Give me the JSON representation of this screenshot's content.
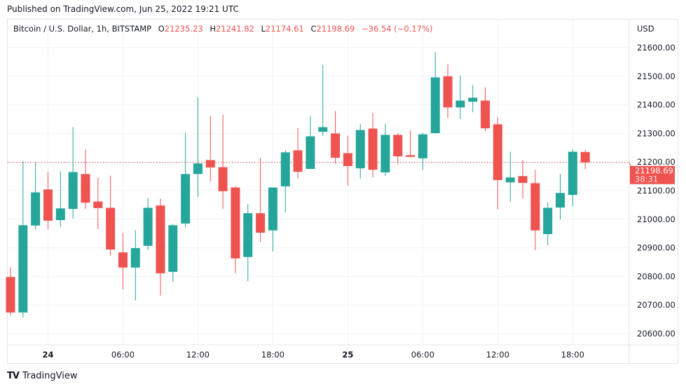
{
  "published": "Published on TradingView.com, Jun 25, 2022 19:21 UTC",
  "legend": {
    "symbol": "Bitcoin / U.S. Dollar, 1h, BITSTAMP",
    "o_label": "O",
    "o": "21235.23",
    "h_label": "H",
    "h": "21241.82",
    "l_label": "L",
    "l": "21174.61",
    "c_label": "C",
    "c": "21198.69",
    "change": "−36.54 (−0.17%)"
  },
  "footer": {
    "brand": "TradingView"
  },
  "colors": {
    "up": "#26a69a",
    "down": "#ef5350",
    "grid": "#f0f3fa"
  },
  "chart_data": {
    "type": "candlestick",
    "currency_label": "USD",
    "ylim": [
      20560,
      21650
    ],
    "y_ticks": [
      "20600.00",
      "20700.00",
      "20800.00",
      "20900.00",
      "21000.00",
      "21100.00",
      "21200.00",
      "21300.00",
      "21400.00",
      "21500.00",
      "21600.00"
    ],
    "y_tick_values": [
      20600,
      20700,
      20800,
      20900,
      21000,
      21100,
      21200,
      21300,
      21400,
      21500,
      21600
    ],
    "x_ticks": [
      {
        "label": "24",
        "bar": 3,
        "bold": true
      },
      {
        "label": "06:00",
        "bar": 9
      },
      {
        "label": "12:00",
        "bar": 15
      },
      {
        "label": "18:00",
        "bar": 21
      },
      {
        "label": "25",
        "bar": 27,
        "bold": true
      },
      {
        "label": "06:00",
        "bar": 33
      },
      {
        "label": "12:00",
        "bar": 39
      },
      {
        "label": "18:00",
        "bar": 45
      }
    ],
    "interval": "1h",
    "grid": true,
    "last_price": {
      "value": 21198.69,
      "label": "21198.69",
      "countdown": "38:31"
    },
    "candles": [
      [
        20798,
        20832,
        20664,
        20674
      ],
      [
        20674,
        21204,
        20657,
        20979
      ],
      [
        20978,
        21199,
        20965,
        21094
      ],
      [
        21104,
        21165,
        20965,
        20995
      ],
      [
        20997,
        21168,
        20973,
        21038
      ],
      [
        21036,
        21322,
        21002,
        21165
      ],
      [
        21158,
        21244,
        21036,
        21058
      ],
      [
        21062,
        21146,
        20965,
        21039
      ],
      [
        21040,
        21153,
        20872,
        20894
      ],
      [
        20884,
        20952,
        20755,
        20831
      ],
      [
        20831,
        20962,
        20716,
        20899
      ],
      [
        20907,
        21075,
        20892,
        21040
      ],
      [
        21048,
        21072,
        20733,
        20811
      ],
      [
        20816,
        20984,
        20782,
        20979
      ],
      [
        20985,
        21302,
        20973,
        21158
      ],
      [
        21158,
        21427,
        21078,
        21195
      ],
      [
        21207,
        21361,
        21132,
        21181
      ],
      [
        21182,
        21366,
        21036,
        21098
      ],
      [
        21111,
        21116,
        20811,
        20863
      ],
      [
        20868,
        21053,
        20784,
        21021
      ],
      [
        21021,
        21214,
        20921,
        20953
      ],
      [
        20961,
        21111,
        20887,
        21111
      ],
      [
        21115,
        21241,
        21024,
        21234
      ],
      [
        21241,
        21319,
        21142,
        21166
      ],
      [
        21176,
        21361,
        21176,
        21290
      ],
      [
        21306,
        21540,
        21293,
        21322
      ],
      [
        21300,
        21378,
        21195,
        21215
      ],
      [
        21231,
        21292,
        21117,
        21186
      ],
      [
        21178,
        21334,
        21142,
        21312
      ],
      [
        21317,
        21371,
        21147,
        21173
      ],
      [
        21164,
        21334,
        21151,
        21295
      ],
      [
        21295,
        21302,
        21191,
        21220
      ],
      [
        21224,
        21310,
        21218,
        21218
      ],
      [
        21213,
        21302,
        21173,
        21297
      ],
      [
        21301,
        21586,
        21301,
        21496
      ],
      [
        21500,
        21542,
        21354,
        21391
      ],
      [
        21391,
        21503,
        21350,
        21415
      ],
      [
        21411,
        21469,
        21374,
        21425
      ],
      [
        21415,
        21461,
        21308,
        21318
      ],
      [
        21332,
        21356,
        21034,
        21137
      ],
      [
        21129,
        21236,
        21061,
        21146
      ],
      [
        21151,
        21207,
        21073,
        21127
      ],
      [
        21126,
        21173,
        20892,
        20961
      ],
      [
        20948,
        21060,
        20909,
        21040
      ],
      [
        21041,
        21158,
        20999,
        21092
      ],
      [
        21085,
        21244,
        21046,
        21236
      ],
      [
        21235.23,
        21241.82,
        21174.61,
        21198.69
      ]
    ]
  }
}
